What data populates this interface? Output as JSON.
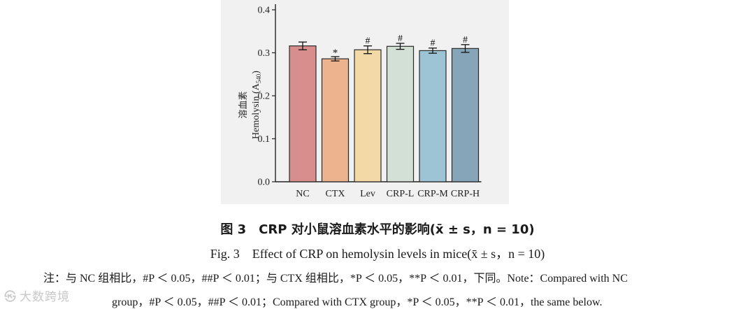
{
  "chart_data": {
    "type": "bar",
    "categories": [
      "NC",
      "CTX",
      "Lev",
      "CRP-L",
      "CRP-M",
      "CRP-H"
    ],
    "values": [
      0.316,
      0.286,
      0.307,
      0.315,
      0.305,
      0.31
    ],
    "errors": [
      0.009,
      0.005,
      0.009,
      0.007,
      0.006,
      0.009
    ],
    "bar_colors": [
      "#d98e8e",
      "#ecb38e",
      "#f3d9a6",
      "#d3e0d6",
      "#9cc4d4",
      "#86a5b8"
    ],
    "significance": [
      "",
      "*",
      "#",
      "#",
      "#",
      "#"
    ],
    "ylabel_line1": "溶血素",
    "ylabel_line2": "Hemolysin (A",
    "ylabel_sub": "540",
    "ylabel_end": ")",
    "ylim": [
      0.0,
      0.4
    ],
    "yticks": [
      "0.0",
      "0.1",
      "0.2",
      "0.3",
      "0.4"
    ],
    "grid": false
  },
  "caption": {
    "cn": "图 3　CRP 对小鼠溶血素水平的影响(x̄ ± s，n = 10)",
    "en": "Fig. 3　Effect of CRP on hemolysin levels in mice(x̄ ± s，n = 10)"
  },
  "note": {
    "line1": "注：与 NC 组相比，#P ＜ 0.05，##P ＜ 0.01；与 CTX 组相比，*P ＜ 0.05，**P ＜ 0.01，下同。Note：Compared with NC",
    "line2": "group，#P ＜ 0.05，##P ＜ 0.01；Compared with CTX group，*P ＜ 0.05，**P ＜ 0.01，the same below."
  },
  "watermark": {
    "logo": "㉿",
    "text": "大数跨境"
  }
}
